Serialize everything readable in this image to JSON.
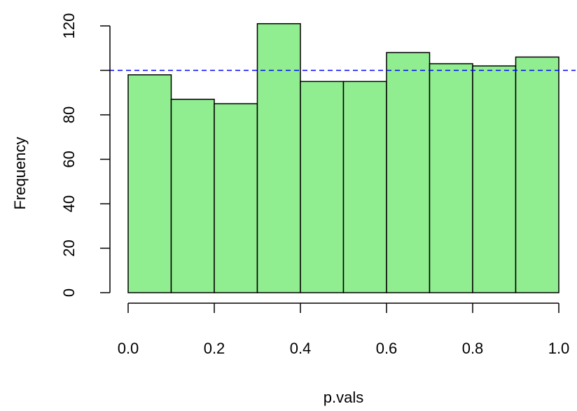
{
  "chart_data": {
    "type": "bar",
    "title": "",
    "xlabel": "p.vals",
    "ylabel": "Frequency",
    "bins": [
      {
        "x0": 0.0,
        "x1": 0.1,
        "value": 98
      },
      {
        "x0": 0.1,
        "x1": 0.2,
        "value": 87
      },
      {
        "x0": 0.2,
        "x1": 0.3,
        "value": 85
      },
      {
        "x0": 0.3,
        "x1": 0.4,
        "value": 121
      },
      {
        "x0": 0.4,
        "x1": 0.5,
        "value": 95
      },
      {
        "x0": 0.5,
        "x1": 0.6,
        "value": 95
      },
      {
        "x0": 0.6,
        "x1": 0.7,
        "value": 108
      },
      {
        "x0": 0.7,
        "x1": 0.8,
        "value": 103
      },
      {
        "x0": 0.8,
        "x1": 0.9,
        "value": 102
      },
      {
        "x0": 0.9,
        "x1": 1.0,
        "value": 106
      }
    ],
    "xlim": [
      0.0,
      1.0
    ],
    "ylim": [
      0,
      120
    ],
    "x_ticks": [
      "0.0",
      "0.2",
      "0.4",
      "0.6",
      "0.8",
      "1.0"
    ],
    "x_tick_values": [
      0.0,
      0.2,
      0.4,
      0.6,
      0.8,
      1.0
    ],
    "y_ticks": [
      "0",
      "20",
      "40",
      "60",
      "80",
      "120"
    ],
    "y_tick_values": [
      0,
      20,
      40,
      60,
      80,
      100,
      120
    ],
    "y_tick_labels_shown": [
      "0",
      "20",
      "40",
      "60",
      "80",
      null,
      "120"
    ],
    "reference_line": {
      "y": 100,
      "style": "dashed",
      "color": "#0000ff"
    },
    "bar_fill": "#90ee90",
    "bar_stroke": "#000000",
    "grid": false,
    "legend": "none"
  }
}
